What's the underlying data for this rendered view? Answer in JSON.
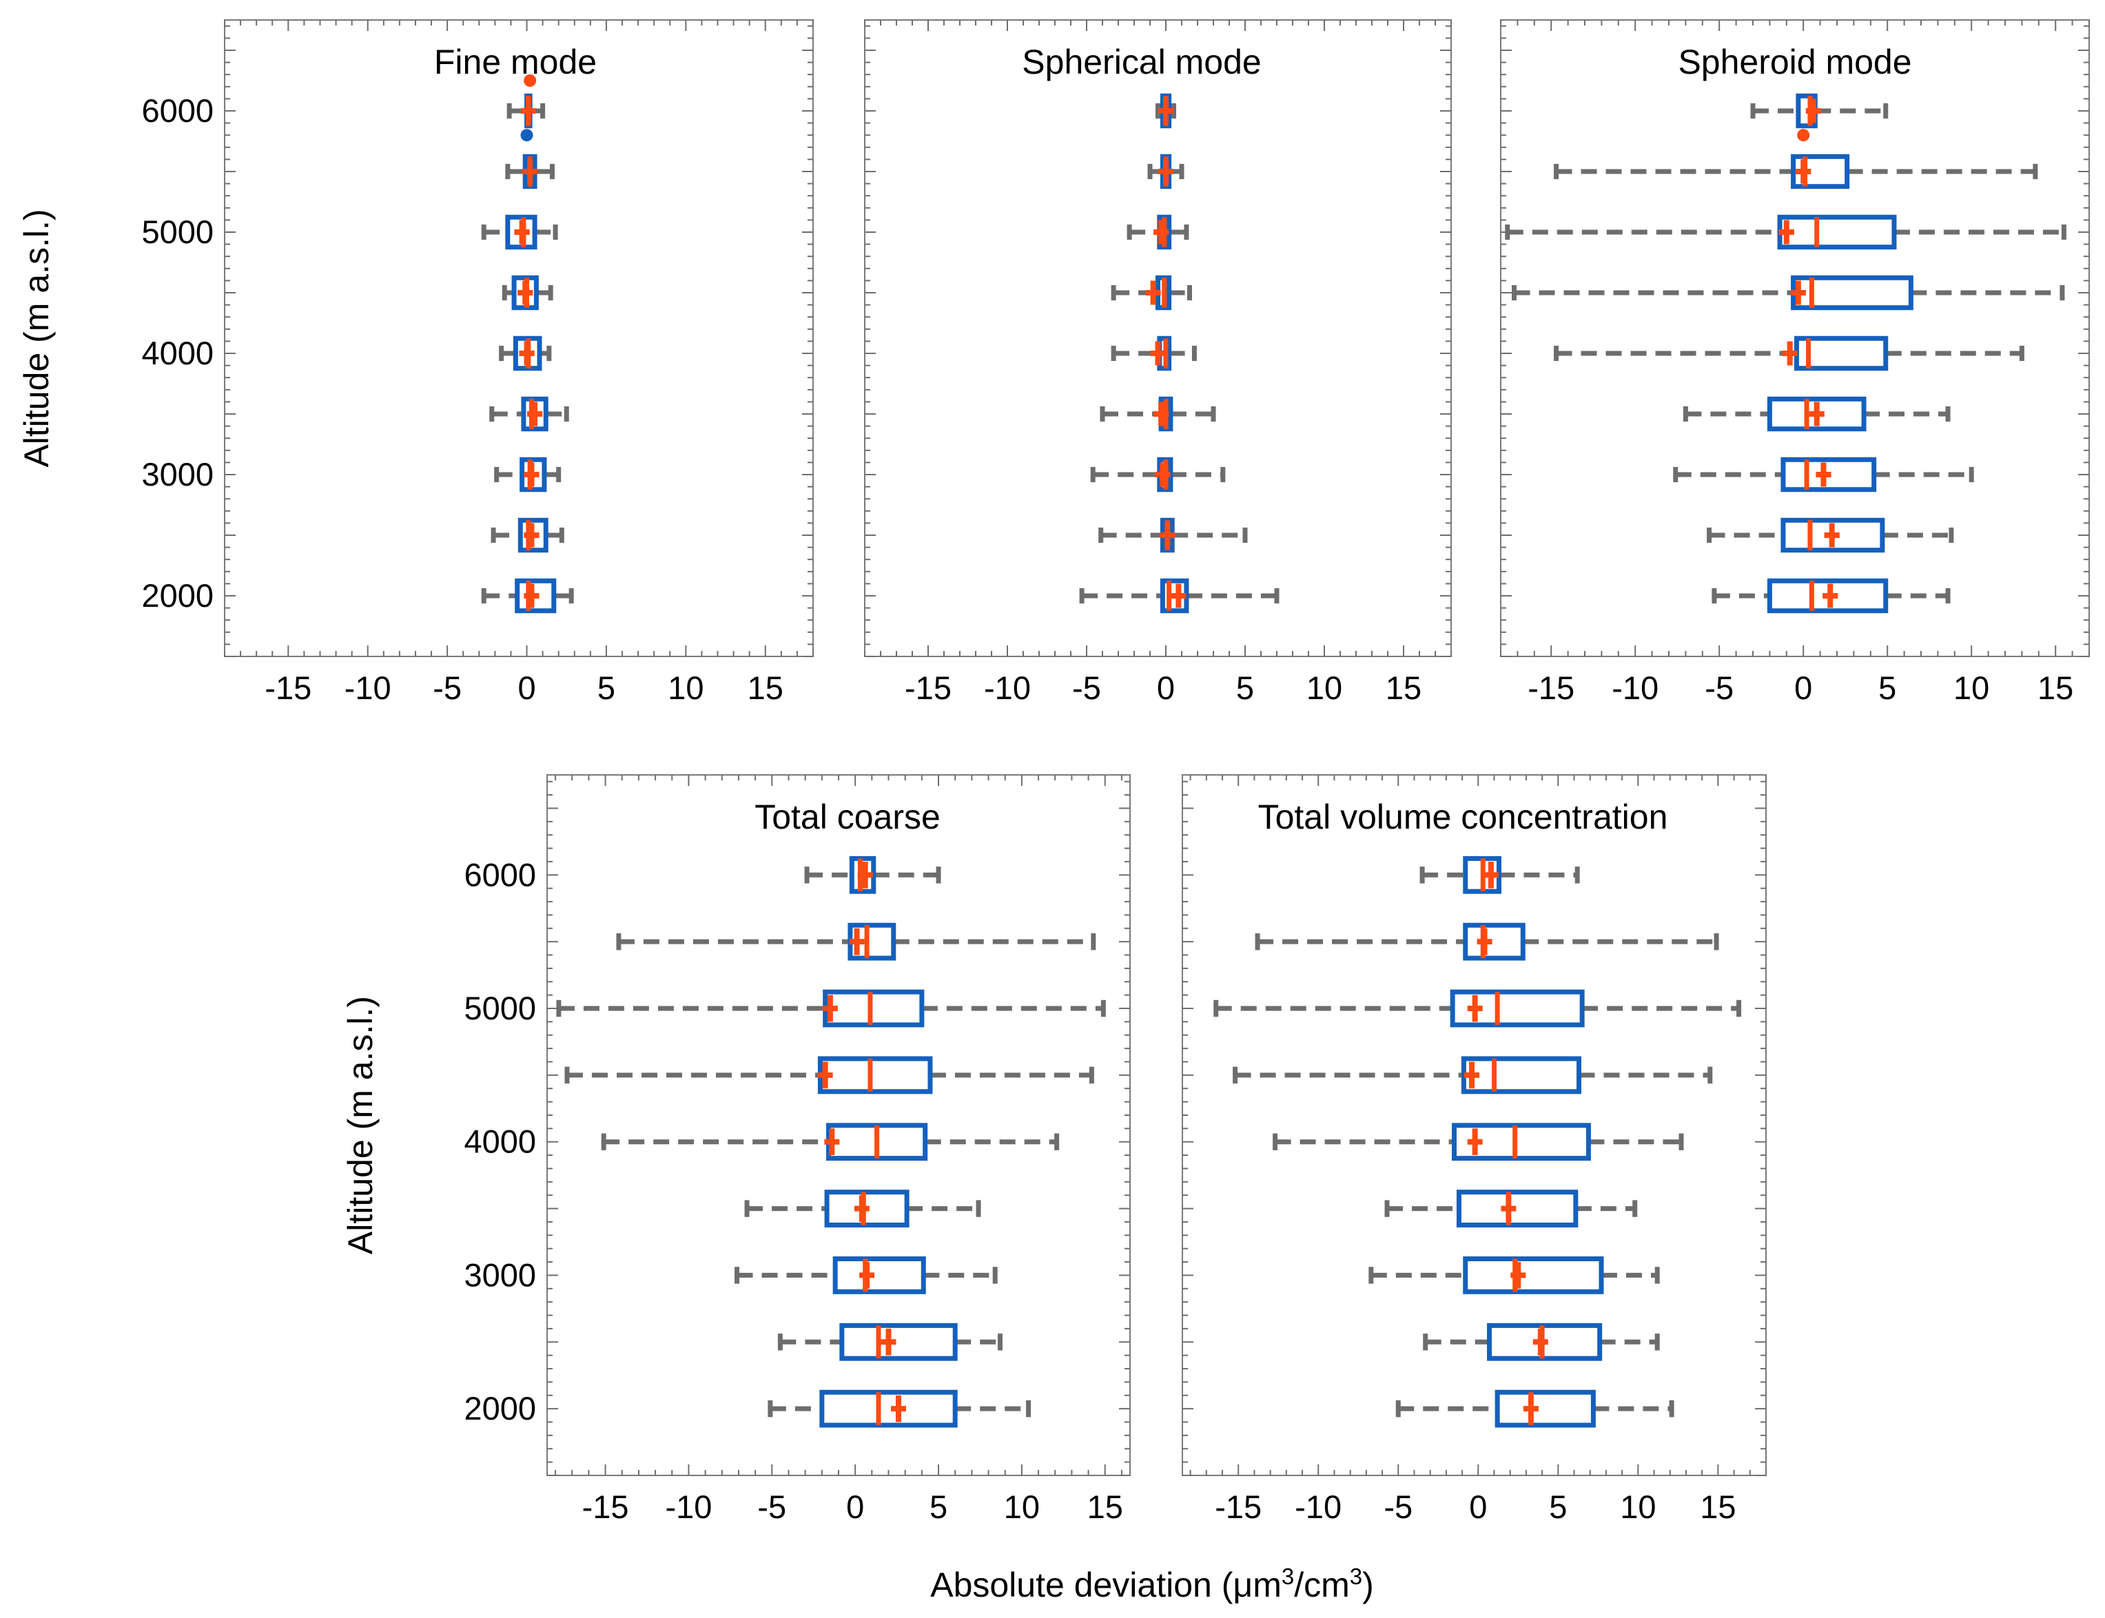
{
  "chart_data": [
    {
      "type": "boxplot",
      "title": "Fine mode",
      "ylabel": "Altitude (m a.s.l.)",
      "xlabel": "",
      "xlim": [
        -19,
        18
      ],
      "ylim": [
        1500,
        6750
      ],
      "xticks": [
        -15,
        -10,
        -5,
        0,
        5,
        10,
        15
      ],
      "yticks": [
        2000,
        3000,
        4000,
        5000,
        6000
      ],
      "xtick_labels": [
        "-15",
        "-10",
        "-5",
        "0",
        "5",
        "10",
        "15"
      ],
      "ytick_labels": [
        "2000",
        "3000",
        "4000",
        "5000",
        "6000"
      ],
      "series": [
        {
          "altitude": 6000,
          "whisker_low": -1.1,
          "q1": 0.0,
          "median": 0.1,
          "q3": 0.2,
          "whisker_high": 1.0,
          "mean": 0.1
        },
        {
          "altitude": 5500,
          "whisker_low": -1.2,
          "q1": -0.1,
          "median": 0.2,
          "q3": 0.5,
          "whisker_high": 1.6,
          "mean": 0.2
        },
        {
          "altitude": 5000,
          "whisker_low": -2.7,
          "q1": -1.2,
          "median": -0.2,
          "q3": 0.5,
          "whisker_high": 1.8,
          "mean": -0.3
        },
        {
          "altitude": 4500,
          "whisker_low": -1.4,
          "q1": -0.8,
          "median": 0.0,
          "q3": 0.6,
          "whisker_high": 1.5,
          "mean": -0.1
        },
        {
          "altitude": 4000,
          "whisker_low": -1.6,
          "q1": -0.7,
          "median": 0.1,
          "q3": 0.8,
          "whisker_high": 1.4,
          "mean": 0.0
        },
        {
          "altitude": 3500,
          "whisker_low": -2.2,
          "q1": -0.2,
          "median": 0.3,
          "q3": 1.2,
          "whisker_high": 2.5,
          "mean": 0.5
        },
        {
          "altitude": 3000,
          "whisker_low": -1.9,
          "q1": -0.3,
          "median": 0.2,
          "q3": 1.1,
          "whisker_high": 2.0,
          "mean": 0.3
        },
        {
          "altitude": 2500,
          "whisker_low": -2.1,
          "q1": -0.4,
          "median": 0.1,
          "q3": 1.2,
          "whisker_high": 2.2,
          "mean": 0.3
        },
        {
          "altitude": 2000,
          "whisker_low": -2.7,
          "q1": -0.6,
          "median": 0.1,
          "q3": 1.7,
          "whisker_high": 2.8,
          "mean": 0.3
        }
      ],
      "outliers": [
        {
          "altitude": 6250,
          "value": 0.2,
          "color": "#ff4a12"
        },
        {
          "altitude": 5800,
          "value": 0.0,
          "color": "#1560bd"
        }
      ]
    },
    {
      "type": "boxplot",
      "title": "Spherical mode",
      "ylabel": "",
      "xlabel": "",
      "xlim": [
        -19,
        18
      ],
      "ylim": [
        1500,
        6750
      ],
      "xticks": [
        -15,
        -10,
        -5,
        0,
        5,
        10,
        15
      ],
      "yticks": [
        2000,
        3000,
        4000,
        5000,
        6000
      ],
      "xtick_labels": [
        "-15",
        "-10",
        "-5",
        "0",
        "5",
        "10",
        "15"
      ],
      "ytick_labels": [],
      "series": [
        {
          "altitude": 6000,
          "whisker_low": -0.5,
          "q1": -0.2,
          "median": 0.0,
          "q3": 0.2,
          "whisker_high": 0.5,
          "mean": 0.0
        },
        {
          "altitude": 5500,
          "whisker_low": -1.0,
          "q1": -0.2,
          "median": 0.0,
          "q3": 0.2,
          "whisker_high": 1.0,
          "mean": 0.0
        },
        {
          "altitude": 5000,
          "whisker_low": -2.3,
          "q1": -0.4,
          "median": -0.1,
          "q3": 0.2,
          "whisker_high": 1.3,
          "mean": -0.3
        },
        {
          "altitude": 4500,
          "whisker_low": -3.3,
          "q1": -0.5,
          "median": -0.1,
          "q3": 0.2,
          "whisker_high": 1.5,
          "mean": -0.8
        },
        {
          "altitude": 4000,
          "whisker_low": -3.3,
          "q1": -0.4,
          "median": 0.0,
          "q3": 0.2,
          "whisker_high": 1.8,
          "mean": -0.5
        },
        {
          "altitude": 3500,
          "whisker_low": -4.0,
          "q1": -0.3,
          "median": 0.0,
          "q3": 0.3,
          "whisker_high": 3.0,
          "mean": -0.3
        },
        {
          "altitude": 3000,
          "whisker_low": -4.6,
          "q1": -0.4,
          "median": 0.0,
          "q3": 0.3,
          "whisker_high": 3.6,
          "mean": -0.2
        },
        {
          "altitude": 2500,
          "whisker_low": -4.1,
          "q1": -0.2,
          "median": 0.1,
          "q3": 0.4,
          "whisker_high": 5.0,
          "mean": 0.1
        },
        {
          "altitude": 2000,
          "whisker_low": -5.3,
          "q1": -0.2,
          "median": 0.2,
          "q3": 1.3,
          "whisker_high": 7.0,
          "mean": 0.8
        }
      ],
      "outliers": []
    },
    {
      "type": "boxplot",
      "title": "Spheroid mode",
      "ylabel": "",
      "xlabel": "",
      "xlim": [
        -18,
        17
      ],
      "ylim": [
        1500,
        6750
      ],
      "xticks": [
        -15,
        -10,
        -5,
        0,
        5,
        10,
        15
      ],
      "yticks": [
        2000,
        3000,
        4000,
        5000,
        6000
      ],
      "xtick_labels": [
        "-15",
        "-10",
        "-5",
        "0",
        "5",
        "10",
        "15"
      ],
      "ytick_labels": [],
      "series": [
        {
          "altitude": 6000,
          "whisker_low": -3.0,
          "q1": -0.3,
          "median": 0.4,
          "q3": 0.7,
          "whisker_high": 4.9,
          "mean": 0.6
        },
        {
          "altitude": 5500,
          "whisker_low": -14.7,
          "q1": -0.6,
          "median": 0.1,
          "q3": 2.6,
          "whisker_high": 13.8,
          "mean": 0.0
        },
        {
          "altitude": 5000,
          "whisker_low": -17.6,
          "q1": -1.4,
          "median": 0.8,
          "q3": 5.4,
          "whisker_high": 15.5,
          "mean": -1.0
        },
        {
          "altitude": 4500,
          "whisker_low": -17.2,
          "q1": -0.6,
          "median": 0.5,
          "q3": 6.4,
          "whisker_high": 15.4,
          "mean": -0.3
        },
        {
          "altitude": 4000,
          "whisker_low": -14.7,
          "q1": -0.4,
          "median": 0.3,
          "q3": 4.9,
          "whisker_high": 13.0,
          "mean": -0.8
        },
        {
          "altitude": 3500,
          "whisker_low": -7.0,
          "q1": -2.0,
          "median": 0.2,
          "q3": 3.6,
          "whisker_high": 8.6,
          "mean": 0.8
        },
        {
          "altitude": 3000,
          "whisker_low": -7.6,
          "q1": -1.2,
          "median": 0.2,
          "q3": 4.2,
          "whisker_high": 10.0,
          "mean": 1.2
        },
        {
          "altitude": 2500,
          "whisker_low": -5.6,
          "q1": -1.2,
          "median": 0.4,
          "q3": 4.7,
          "whisker_high": 8.8,
          "mean": 1.7
        },
        {
          "altitude": 2000,
          "whisker_low": -5.3,
          "q1": -2.0,
          "median": 0.5,
          "q3": 4.9,
          "whisker_high": 8.6,
          "mean": 1.6
        }
      ],
      "outliers": [
        {
          "altitude": 5800,
          "value": 0.0,
          "color": "#ff4a12"
        }
      ]
    },
    {
      "type": "boxplot",
      "title": "Total coarse",
      "ylabel": "Altitude (m a.s.l.)",
      "xlabel": "",
      "xlim": [
        -18.5,
        16.5
      ],
      "ylim": [
        1500,
        6750
      ],
      "xticks": [
        -15,
        -10,
        -5,
        0,
        5,
        10,
        15
      ],
      "yticks": [
        2000,
        3000,
        4000,
        5000,
        6000
      ],
      "xtick_labels": [
        "-15",
        "-10",
        "-5",
        "0",
        "5",
        "10",
        "15"
      ],
      "ytick_labels": [
        "2000",
        "3000",
        "4000",
        "5000",
        "6000"
      ],
      "series": [
        {
          "altitude": 6000,
          "whisker_low": -2.9,
          "q1": -0.2,
          "median": 0.3,
          "q3": 1.1,
          "whisker_high": 5.0,
          "mean": 0.6
        },
        {
          "altitude": 5500,
          "whisker_low": -14.2,
          "q1": -0.3,
          "median": 0.7,
          "q3": 2.3,
          "whisker_high": 14.3,
          "mean": 0.1
        },
        {
          "altitude": 5000,
          "whisker_low": -17.8,
          "q1": -1.8,
          "median": 0.9,
          "q3": 4.0,
          "whisker_high": 14.9,
          "mean": -1.5
        },
        {
          "altitude": 4500,
          "whisker_low": -17.3,
          "q1": -2.1,
          "median": 0.9,
          "q3": 4.5,
          "whisker_high": 14.2,
          "mean": -1.8
        },
        {
          "altitude": 4000,
          "whisker_low": -15.1,
          "q1": -1.6,
          "median": 1.3,
          "q3": 4.2,
          "whisker_high": 12.1,
          "mean": -1.4
        },
        {
          "altitude": 3500,
          "whisker_low": -6.5,
          "q1": -1.7,
          "median": 0.5,
          "q3": 3.1,
          "whisker_high": 7.4,
          "mean": 0.4
        },
        {
          "altitude": 3000,
          "whisker_low": -7.1,
          "q1": -1.2,
          "median": 0.6,
          "q3": 4.1,
          "whisker_high": 8.4,
          "mean": 0.7
        },
        {
          "altitude": 2500,
          "whisker_low": -4.5,
          "q1": -0.8,
          "median": 1.4,
          "q3": 6.0,
          "whisker_high": 8.7,
          "mean": 2.0
        },
        {
          "altitude": 2000,
          "whisker_low": -5.1,
          "q1": -2.0,
          "median": 1.4,
          "q3": 6.0,
          "whisker_high": 10.4,
          "mean": 2.6
        }
      ],
      "outliers": []
    },
    {
      "type": "boxplot",
      "title": "Total volume concentration",
      "ylabel": "",
      "xlabel": "",
      "xlim": [
        -18.5,
        18
      ],
      "ylim": [
        1500,
        6750
      ],
      "xticks": [
        -15,
        -10,
        -5,
        0,
        5,
        10,
        15
      ],
      "yticks": [
        2000,
        3000,
        4000,
        5000,
        6000
      ],
      "xtick_labels": [
        "-15",
        "-10",
        "-5",
        "0",
        "5",
        "10",
        "15"
      ],
      "ytick_labels": [],
      "series": [
        {
          "altitude": 6000,
          "whisker_low": -3.5,
          "q1": -0.8,
          "median": 0.3,
          "q3": 1.3,
          "whisker_high": 6.2,
          "mean": 0.8
        },
        {
          "altitude": 5500,
          "whisker_low": -13.8,
          "q1": -0.8,
          "median": 0.3,
          "q3": 2.8,
          "whisker_high": 14.9,
          "mean": 0.4
        },
        {
          "altitude": 5000,
          "whisker_low": -16.4,
          "q1": -1.6,
          "median": 1.2,
          "q3": 6.5,
          "whisker_high": 16.3,
          "mean": -0.2
        },
        {
          "altitude": 4500,
          "whisker_low": -15.2,
          "q1": -0.9,
          "median": 1.0,
          "q3": 6.3,
          "whisker_high": 14.5,
          "mean": -0.4
        },
        {
          "altitude": 4000,
          "whisker_low": -12.7,
          "q1": -1.5,
          "median": 2.3,
          "q3": 6.9,
          "whisker_high": 12.7,
          "mean": -0.2
        },
        {
          "altitude": 3500,
          "whisker_low": -5.7,
          "q1": -1.2,
          "median": 1.9,
          "q3": 6.1,
          "whisker_high": 9.8,
          "mean": 1.9
        },
        {
          "altitude": 3000,
          "whisker_low": -6.7,
          "q1": -0.8,
          "median": 2.3,
          "q3": 7.7,
          "whisker_high": 11.2,
          "mean": 2.5
        },
        {
          "altitude": 2500,
          "whisker_low": -3.3,
          "q1": 0.7,
          "median": 4.0,
          "q3": 7.6,
          "whisker_high": 11.2,
          "mean": 3.9
        },
        {
          "altitude": 2000,
          "whisker_low": -5.0,
          "q1": 1.2,
          "median": 3.3,
          "q3": 7.2,
          "whisker_high": 12.1,
          "mean": 3.3
        }
      ],
      "outliers": []
    }
  ],
  "figure": {
    "shared_xlabel_prefix": "Absolute deviation (",
    "shared_xlabel_mu": "μ",
    "shared_xlabel_m": "m",
    "shared_xlabel_sup1": "3",
    "shared_xlabel_cm": "/cm",
    "shared_xlabel_sup2": "3",
    "shared_xlabel_suffix": ")"
  },
  "colors": {
    "box": "#1560bd",
    "median": "#ff4a12",
    "mean": "#ff4a12",
    "whisker": "#6d6d6d"
  }
}
